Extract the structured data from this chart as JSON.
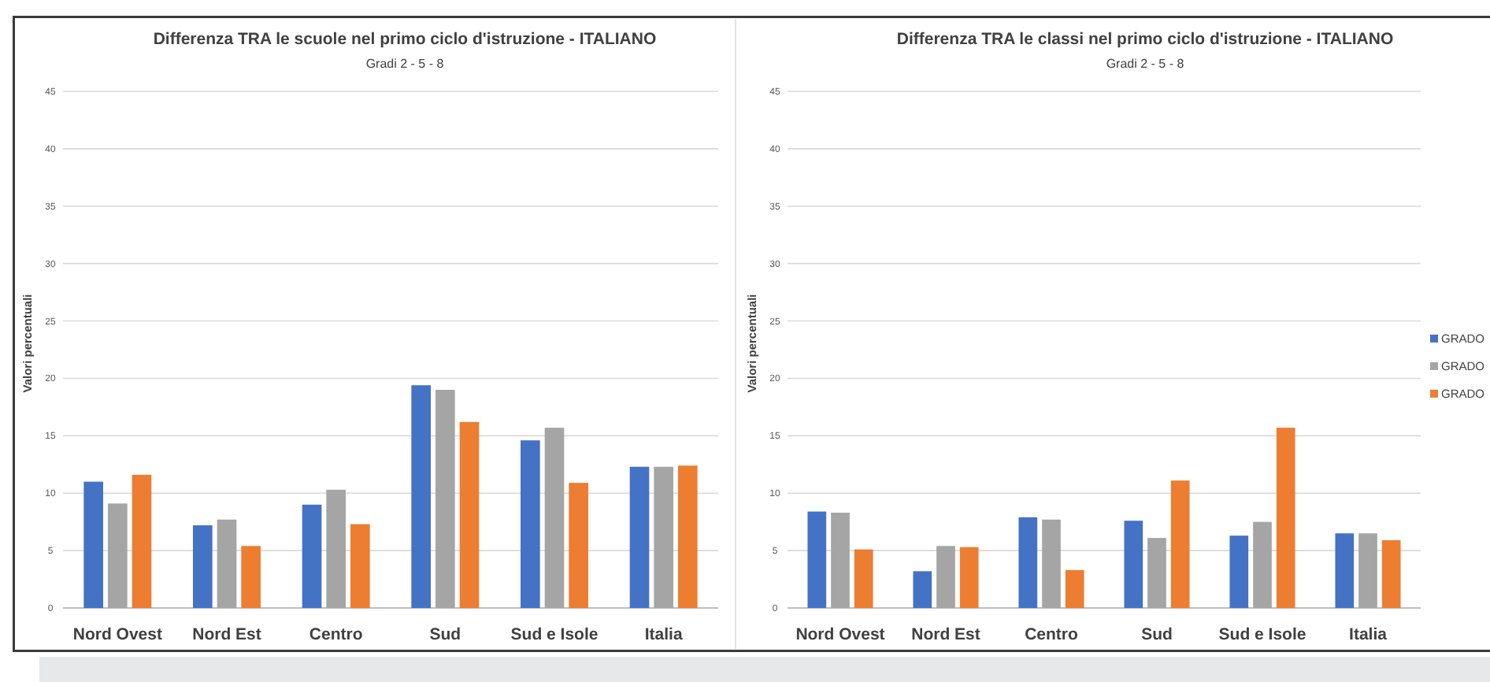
{
  "chart_data": [
    {
      "type": "bar",
      "title": "Differenza TRA le scuole nel primo ciclo d'istruzione - ITALIANO",
      "subtitle": "Gradi 2 - 5 - 8",
      "ylabel": "Valori percentuali",
      "categories": [
        "Nord Ovest",
        "Nord Est",
        "Centro",
        "Sud",
        "Sud e Isole",
        "Italia"
      ],
      "series": [
        {
          "color": "#4472c4",
          "values": [
            11.0,
            7.2,
            9.0,
            19.4,
            14.6,
            12.3
          ]
        },
        {
          "color": "#a5a5a5",
          "values": [
            9.1,
            7.7,
            10.3,
            19.0,
            15.7,
            12.3
          ]
        },
        {
          "color": "#ed7d31",
          "values": [
            11.6,
            5.4,
            7.3,
            16.2,
            10.9,
            12.4
          ]
        }
      ],
      "ylim": [
        0,
        45
      ],
      "yticks": [
        0,
        5,
        10,
        15,
        20,
        25,
        30,
        35,
        40,
        45
      ],
      "grid": "y"
    },
    {
      "type": "bar",
      "title": "Differenza TRA le classi nel primo ciclo d'istruzione - ITALIANO",
      "subtitle": "Gradi 2 - 5 - 8",
      "ylabel": "Valori percentuali",
      "categories": [
        "Nord Ovest",
        "Nord Est",
        "Centro",
        "Sud",
        "Sud e Isole",
        "Italia"
      ],
      "series": [
        {
          "name": "GRADO",
          "color": "#4472c4",
          "values": [
            8.4,
            3.2,
            7.9,
            7.6,
            6.3,
            6.5
          ]
        },
        {
          "name": "GRADO",
          "color": "#a5a5a5",
          "values": [
            8.3,
            5.4,
            7.7,
            6.1,
            7.5,
            6.5
          ]
        },
        {
          "name": "GRADO",
          "color": "#ed7d31",
          "values": [
            5.1,
            5.3,
            3.3,
            11.1,
            15.7,
            5.9
          ]
        }
      ],
      "ylim": [
        0,
        45
      ],
      "yticks": [
        0,
        5,
        10,
        15,
        20,
        25,
        30,
        35,
        40,
        45
      ],
      "grid": "y",
      "legend": "right"
    }
  ]
}
